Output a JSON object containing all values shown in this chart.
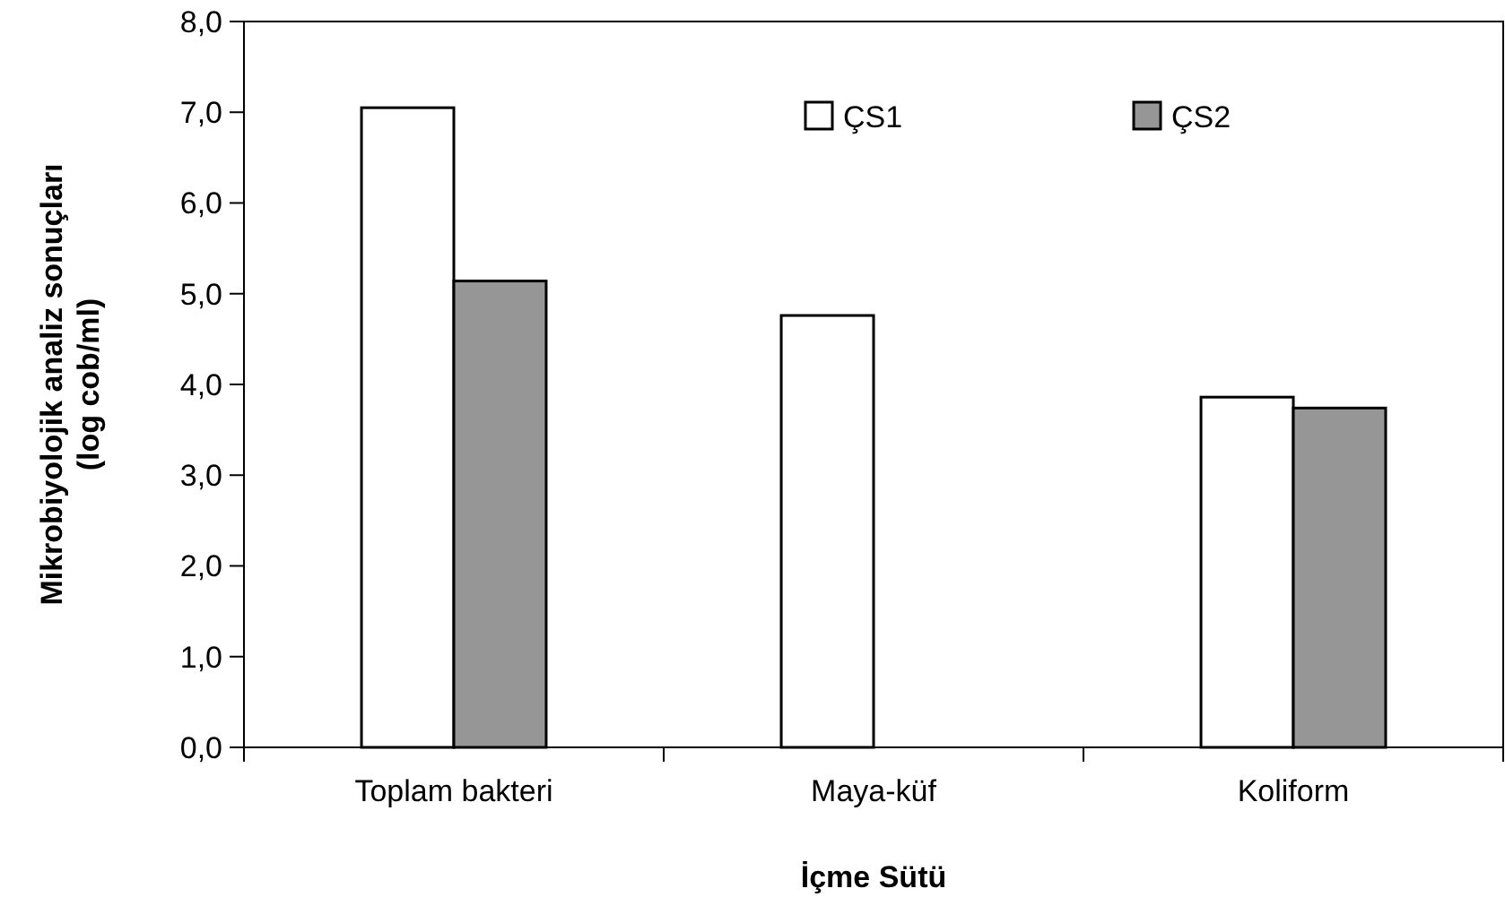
{
  "chart_data": {
    "type": "bar",
    "xlabel": "İçme Sütü",
    "ylabel": "Mikrobiyolojik analiz sonuçları (log cob/ml)",
    "categories": [
      "Toplam bakteri",
      "Maya-küf",
      "Koliform"
    ],
    "series": [
      {
        "name": "ÇS1",
        "color": "#ffffff",
        "values": [
          7.05,
          4.76,
          3.86
        ]
      },
      {
        "name": "ÇS2",
        "color": "#969696",
        "values": [
          5.14,
          null,
          3.74
        ]
      }
    ],
    "ylim": [
      0,
      8
    ],
    "yticks": [
      {
        "value": 0,
        "label": "0,0"
      },
      {
        "value": 1,
        "label": "1,0"
      },
      {
        "value": 2,
        "label": "2,0"
      },
      {
        "value": 3,
        "label": "3,0"
      },
      {
        "value": 4,
        "label": "4,0"
      },
      {
        "value": 5,
        "label": "5,0"
      },
      {
        "value": 6,
        "label": "6,0"
      },
      {
        "value": 7,
        "label": "7,0"
      },
      {
        "value": 8,
        "label": "8,0"
      }
    ],
    "grid": false,
    "legend": "top"
  }
}
